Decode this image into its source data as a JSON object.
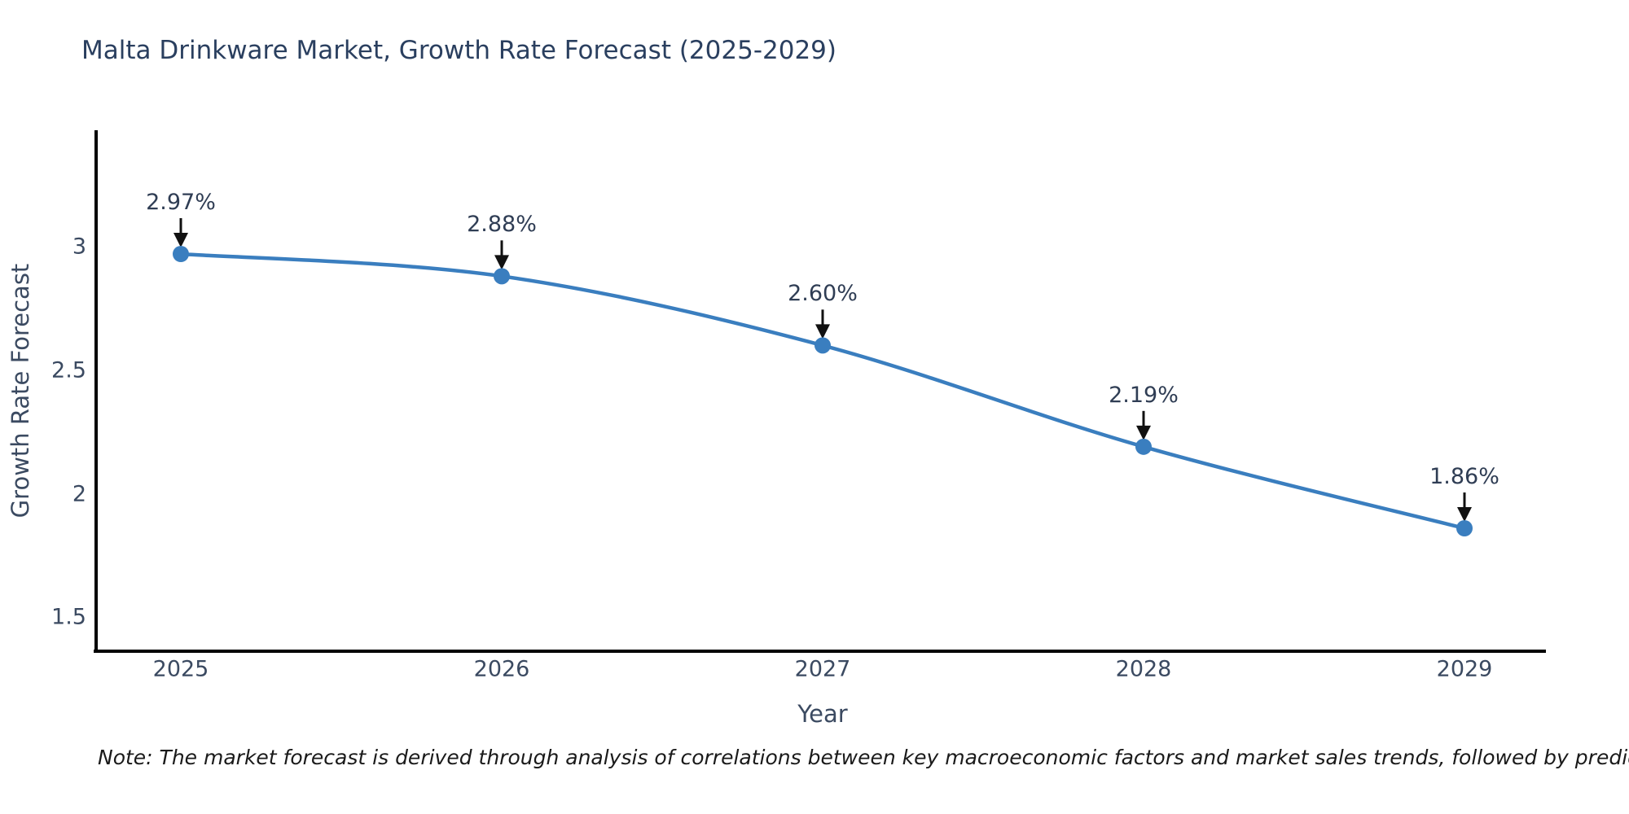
{
  "title": {
    "text": "Malta Drinkware Market, Growth Rate Forecast (2025-2029)",
    "color": "#2a3f5f"
  },
  "note": {
    "text": "Note: The market forecast is derived through analysis of correlations between key macroeconomic factors and market sales trends, followed by predictive modeling to project future sales."
  },
  "chart_data": {
    "type": "line",
    "title": "Malta Drinkware Market, Growth Rate Forecast (2025-2029)",
    "categories": [
      "2025",
      "2026",
      "2027",
      "2028",
      "2029"
    ],
    "series": [
      {
        "name": "Growth Rate Forecast",
        "values": [
          2.97,
          2.88,
          2.6,
          2.19,
          1.86
        ]
      }
    ],
    "data_labels": [
      "2.97%",
      "2.88%",
      "2.60%",
      "2.19%",
      "1.86%"
    ],
    "xlabel": "Year",
    "ylabel": "Growth Rate Forecast",
    "yticks": [
      1.5,
      2,
      2.5,
      3
    ],
    "ylim": [
      1.34,
      3.48
    ],
    "grid": false,
    "legend": false,
    "line_shape": "spline",
    "line_color": "#3a7ebf",
    "marker_color": "#3a7ebf",
    "axis_line_color": "#000000",
    "annotation_arrow_color": "#111111",
    "text_color": "#3b4a61"
  }
}
